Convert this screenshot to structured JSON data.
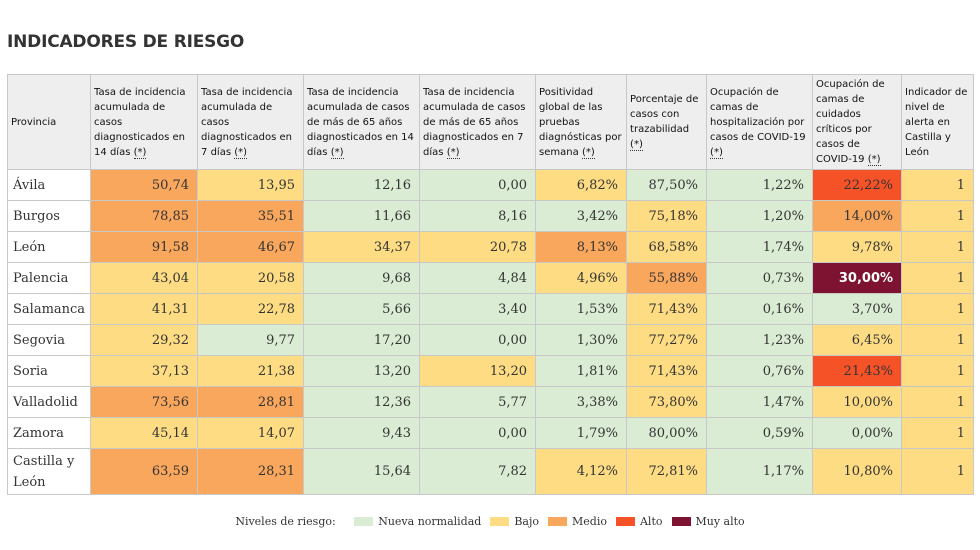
{
  "title": "INDICADORES DE RIESGO",
  "headers": [
    {
      "text": "Provincia",
      "mark": ""
    },
    {
      "text": "Tasa de incidencia acumulada de casos diagnosticados en 14 días ",
      "mark": "(*)"
    },
    {
      "text": "Tasa de incidencia acumulada de casos diagnosticados en 7 días ",
      "mark": "(*)"
    },
    {
      "text": "Tasa de incidencia acumulada de casos de más de 65 años diagnosticados en 14 días ",
      "mark": "(*)"
    },
    {
      "text": "Tasa de incidencia acumulada de casos de más de 65 años diagnosticados en 7 días ",
      "mark": "(*)"
    },
    {
      "text": "Positividad global de las pruebas diagnósticas por semana ",
      "mark": "(*)"
    },
    {
      "text": "Porcentaje de casos con trazabilidad ",
      "mark": "(*)"
    },
    {
      "text": "Ocupación de camas de hospitalización por casos de COVID-19 ",
      "mark": "(*)"
    },
    {
      "text": "Ocupación de camas de cuidados críticos por casos de COVID-19 ",
      "mark": "(*)"
    },
    {
      "text": "Indicador de nivel de alerta en Castilla y León",
      "mark": ""
    }
  ],
  "levels": {
    "N": "#daecd3",
    "B": "#fddc84",
    "M": "#f9a75c",
    "A": "#f65228",
    "V": "#7d1330"
  },
  "rows": [
    {
      "province": "Ávila",
      "values": [
        "50,74",
        "13,95",
        "12,16",
        "0,00",
        "6,82%",
        "87,50%",
        "1,22%",
        "22,22%",
        "1"
      ],
      "levels": [
        "M",
        "B",
        "N",
        "N",
        "B",
        "N",
        "N",
        "A",
        "B"
      ]
    },
    {
      "province": "Burgos",
      "values": [
        "78,85",
        "35,51",
        "11,66",
        "8,16",
        "3,42%",
        "75,18%",
        "1,20%",
        "14,00%",
        "1"
      ],
      "levels": [
        "M",
        "M",
        "N",
        "N",
        "N",
        "B",
        "N",
        "M",
        "B"
      ]
    },
    {
      "province": "León",
      "values": [
        "91,58",
        "46,67",
        "34,37",
        "20,78",
        "8,13%",
        "68,58%",
        "1,74%",
        "9,78%",
        "1"
      ],
      "levels": [
        "M",
        "M",
        "B",
        "B",
        "M",
        "B",
        "N",
        "B",
        "B"
      ]
    },
    {
      "province": "Palencia",
      "values": [
        "43,04",
        "20,58",
        "9,68",
        "4,84",
        "4,96%",
        "55,88%",
        "0,73%",
        "30,00%",
        "1"
      ],
      "levels": [
        "B",
        "B",
        "N",
        "N",
        "B",
        "M",
        "N",
        "V",
        "B"
      ]
    },
    {
      "province": "Salamanca",
      "values": [
        "41,31",
        "22,78",
        "5,66",
        "3,40",
        "1,53%",
        "71,43%",
        "0,16%",
        "3,70%",
        "1"
      ],
      "levels": [
        "B",
        "B",
        "N",
        "N",
        "N",
        "B",
        "N",
        "N",
        "B"
      ]
    },
    {
      "province": "Segovia",
      "values": [
        "29,32",
        "9,77",
        "17,20",
        "0,00",
        "1,30%",
        "77,27%",
        "1,23%",
        "6,45%",
        "1"
      ],
      "levels": [
        "B",
        "N",
        "N",
        "N",
        "N",
        "B",
        "N",
        "B",
        "B"
      ]
    },
    {
      "province": "Soria",
      "values": [
        "37,13",
        "21,38",
        "13,20",
        "13,20",
        "1,81%",
        "71,43%",
        "0,76%",
        "21,43%",
        "1"
      ],
      "levels": [
        "B",
        "B",
        "N",
        "B",
        "N",
        "B",
        "N",
        "A",
        "B"
      ]
    },
    {
      "province": "Valladolid",
      "values": [
        "73,56",
        "28,81",
        "12,36",
        "5,77",
        "3,38%",
        "73,80%",
        "1,47%",
        "10,00%",
        "1"
      ],
      "levels": [
        "M",
        "M",
        "N",
        "N",
        "N",
        "B",
        "N",
        "B",
        "B"
      ]
    },
    {
      "province": "Zamora",
      "values": [
        "45,14",
        "14,07",
        "9,43",
        "0,00",
        "1,79%",
        "80,00%",
        "0,59%",
        "0,00%",
        "1"
      ],
      "levels": [
        "B",
        "B",
        "N",
        "N",
        "N",
        "N",
        "N",
        "N",
        "B"
      ]
    },
    {
      "province": "Castilla y León",
      "values": [
        "63,59",
        "28,31",
        "15,64",
        "7,82",
        "4,12%",
        "72,81%",
        "1,17%",
        "10,80%",
        "1"
      ],
      "levels": [
        "M",
        "M",
        "N",
        "N",
        "B",
        "B",
        "N",
        "B",
        "B"
      ]
    }
  ],
  "legend": {
    "label": "Niveles de riesgo:",
    "items": [
      {
        "code": "N",
        "label": "Nueva normalidad"
      },
      {
        "code": "B",
        "label": "Bajo"
      },
      {
        "code": "M",
        "label": "Medio"
      },
      {
        "code": "A",
        "label": "Alto"
      },
      {
        "code": "V",
        "label": "Muy alto"
      }
    ]
  }
}
